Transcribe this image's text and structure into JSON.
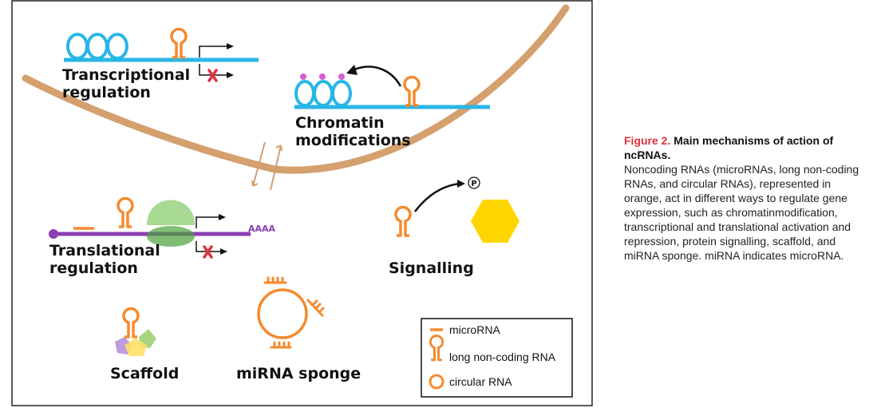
{
  "colors": {
    "dna": "#29b6e6",
    "rna": "#f58a2e",
    "mrna": "#8b3fb5",
    "membrane": "#d4a06e",
    "ribosome": "#6cc04a",
    "cross": "#e03040",
    "methyl": "#d55fd0",
    "phosphotarget": "#ffd500",
    "caption_label": "#e03040"
  },
  "diagram": {
    "transcriptional": {
      "label_line1": "Transcriptional",
      "label_line2": "regulation"
    },
    "chromatin": {
      "label_line1": "Chromatin",
      "label_line2": "modifications"
    },
    "translational": {
      "label_line1": "Translational",
      "label_line2": "regulation",
      "polya": "AAAA"
    },
    "signalling": {
      "label": "Signalling",
      "phospho": "P"
    },
    "scaffold": {
      "label": "Scaffold"
    },
    "sponge": {
      "label": "miRNA sponge"
    }
  },
  "legend": {
    "items": [
      {
        "icon": "microrna-line-icon",
        "label": "microRNA"
      },
      {
        "icon": "lncrna-hairpin-icon",
        "label": "long non-coding RNA"
      },
      {
        "icon": "circular-rna-icon",
        "label": "circular RNA"
      }
    ]
  },
  "caption": {
    "figure_label": "Figure 2.",
    "title": "Main mechanisms of action of ncRNAs.",
    "body": "Noncoding RNAs (microRNAs, long non-coding RNAs, and circular RNAs), represented in orange, act in different ways to regulate gene expression, such as chromatinmodification, transcriptional and translational activation and repression, protein signalling, scaffold, and miRNA sponge. miRNA indicates microRNA."
  }
}
